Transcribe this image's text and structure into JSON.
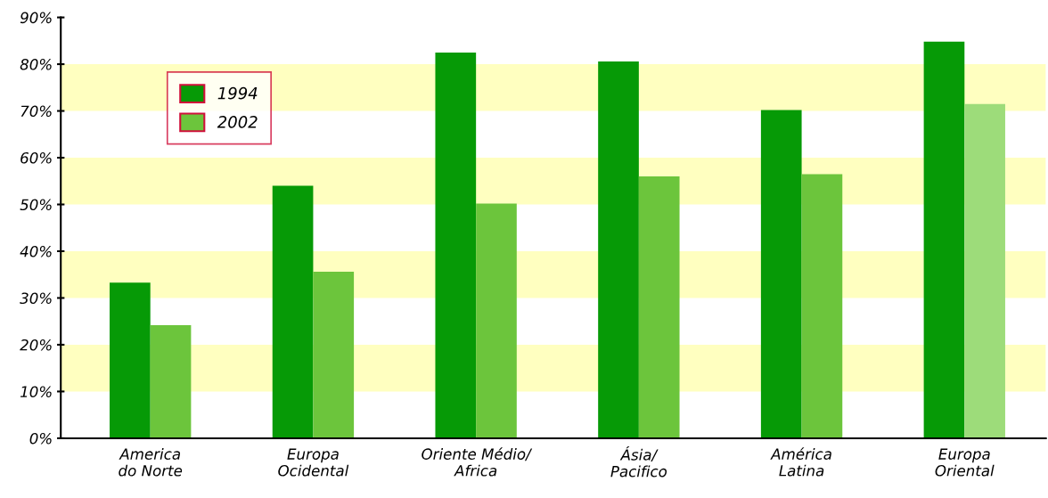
{
  "chart_data": {
    "type": "bar",
    "categories": [
      "America\ndo Norte",
      "Europa\nOcidental",
      "Oriente Médio/\nAfrica",
      "Ásia/\nPacifico",
      "América\nLatina",
      "Europa\nOriental"
    ],
    "series": [
      {
        "name": "1994",
        "color": "#069a06",
        "values": [
          33.3,
          54,
          82.5,
          80.6,
          70.2,
          84.8
        ]
      },
      {
        "name": "2002",
        "color": "#6cc53c",
        "colors": [
          "#6cc53c",
          "#6cc53c",
          "#6cc53c",
          "#6cc53c",
          "#6cc53c",
          "#9ddc7a"
        ],
        "values": [
          24.2,
          35.6,
          50.2,
          56,
          56.5,
          71.5
        ]
      }
    ],
    "ylim": [
      0,
      90
    ],
    "yticks": [
      {
        "value": 0,
        "label": "0%"
      },
      {
        "value": 10,
        "label": "10%"
      },
      {
        "value": 20,
        "label": "20%"
      },
      {
        "value": 30,
        "label": "30%"
      },
      {
        "value": 40,
        "label": "40%"
      },
      {
        "value": 50,
        "label": "50%"
      },
      {
        "value": 60,
        "label": "60%"
      },
      {
        "value": 70,
        "label": "70%"
      },
      {
        "value": 80,
        "label": "80%"
      },
      {
        "value": 90,
        "label": "90%"
      }
    ],
    "bands": [
      {
        "axis": "y",
        "from": 10,
        "to": 20,
        "color": "#ffffc0"
      },
      {
        "axis": "y",
        "from": 30,
        "to": 40,
        "color": "#ffffc0"
      },
      {
        "axis": "y",
        "from": 50,
        "to": 60,
        "color": "#ffffc0"
      },
      {
        "axis": "y",
        "from": 70,
        "to": 80,
        "color": "#ffffc0"
      }
    ],
    "legend": "top left"
  }
}
